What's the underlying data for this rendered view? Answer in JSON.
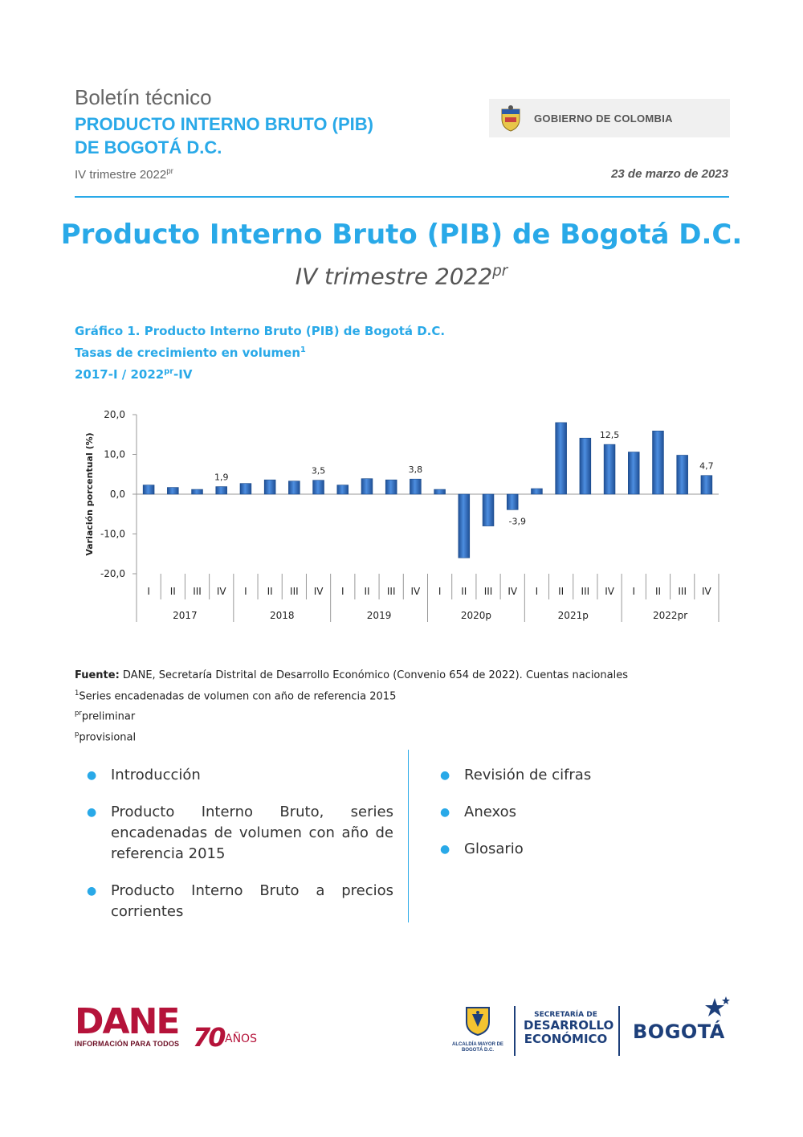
{
  "header": {
    "kicker": "Boletín técnico",
    "title_line1": "PRODUCTO INTERNO BRUTO (PIB)",
    "title_line2": "DE BOGOTÁ D.C.",
    "period": "IV trimestre 2022",
    "period_sup": "pr",
    "date": "23 de marzo de 2023",
    "gov_label": "GOBIERNO DE COLOMBIA"
  },
  "document": {
    "title": "Producto Interno Bruto (PIB) de Bogotá D.C.",
    "subtitle": "IV trimestre 2022",
    "subtitle_sup": "pr"
  },
  "chart_caption": {
    "line1": "Gráfico 1. Producto Interno Bruto (PIB) de Bogotá D.C.",
    "line2": "Tasas de crecimiento en volumen",
    "line2_sup": "1",
    "line3_a": "2017-I / 2022",
    "line3_sup": "pr",
    "line3_b": "-IV"
  },
  "chart_data": {
    "type": "bar",
    "ylabel": "Variación porcentual (%)",
    "ylim": [
      -20,
      20
    ],
    "yticks": [
      20,
      10,
      0,
      -10,
      -20
    ],
    "ytick_labels": [
      "20,0",
      "10,0",
      "0,0",
      "-10,0",
      "-20,0"
    ],
    "groups": [
      {
        "year": "2017",
        "quarters": [
          "I",
          "II",
          "III",
          "IV"
        ],
        "values": [
          2.3,
          1.7,
          1.2,
          1.9
        ]
      },
      {
        "year": "2018",
        "quarters": [
          "I",
          "II",
          "III",
          "IV"
        ],
        "values": [
          2.7,
          3.6,
          3.3,
          3.5
        ]
      },
      {
        "year": "2019",
        "quarters": [
          "I",
          "II",
          "III",
          "IV"
        ],
        "values": [
          2.3,
          3.9,
          3.6,
          3.8
        ]
      },
      {
        "year": "2020p",
        "quarters": [
          "I",
          "II",
          "III",
          "IV"
        ],
        "values": [
          1.2,
          -16.0,
          -8.0,
          -3.9
        ]
      },
      {
        "year": "2021p",
        "quarters": [
          "I",
          "II",
          "III",
          "IV"
        ],
        "values": [
          1.4,
          18.0,
          14.1,
          12.5
        ]
      },
      {
        "year": "2022pr",
        "quarters": [
          "I",
          "II",
          "III",
          "IV"
        ],
        "values": [
          10.6,
          15.9,
          9.8,
          4.7
        ]
      }
    ],
    "data_labels": [
      {
        "group": 0,
        "quarter": 3,
        "text": "1,9"
      },
      {
        "group": 1,
        "quarter": 3,
        "text": "3,5"
      },
      {
        "group": 2,
        "quarter": 3,
        "text": "3,8"
      },
      {
        "group": 3,
        "quarter": 3,
        "text": "-3,9"
      },
      {
        "group": 4,
        "quarter": 3,
        "text": "12,5"
      },
      {
        "group": 5,
        "quarter": 3,
        "text": "4,7"
      }
    ],
    "bar_color": "#2e6fc0",
    "grid": false
  },
  "notes": {
    "source_label": "Fuente:",
    "source_text": " DANE, Secretaría Distrital de Desarrollo Económico (Convenio 654 de 2022). Cuentas nacionales",
    "n1_sup": "1",
    "n1_text": "Series encadenadas de volumen con año de referencia 2015",
    "n2_sup": "pr",
    "n2_text": "preliminar",
    "n3_sup": "p",
    "n3_text": "provisional"
  },
  "toc": {
    "left": [
      "Introducción",
      "Producto Interno Bruto, series encadenadas de volumen con año de referencia 2015",
      "Producto Interno Bruto a precios corrientes"
    ],
    "right": [
      "Revisión de cifras",
      "Anexos",
      "Glosario"
    ]
  },
  "footer": {
    "dane_word": "DANE",
    "dane_tag": "INFORMACIÓN PARA TODOS",
    "seventy": "70",
    "anos": "AÑOS",
    "alcaldia": "ALCALDÍA MAYOR DE BOGOTÁ D.C.",
    "sde_l1": "SECRETARÍA DE",
    "sde_l2": "DESARROLLO",
    "sde_l3": "ECONÓMICO",
    "bogota": "BOGOTÁ"
  },
  "colors": {
    "accent": "#29a9e8",
    "dane": "#b5133a",
    "bogota_blue": "#1d3f7a"
  }
}
